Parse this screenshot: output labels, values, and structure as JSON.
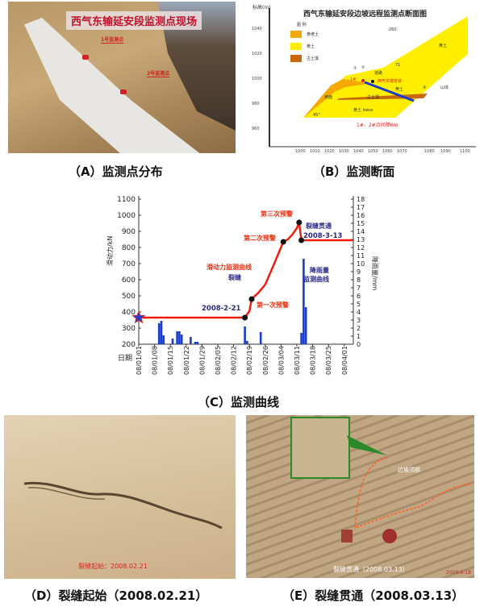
{
  "panel_a": {
    "photo_title": "西气东输延安段监测点现场",
    "marker_1": "1号监测点",
    "marker_2": "2号监测点",
    "caption": "（A）监测点分布"
  },
  "panel_b": {
    "title": "西气东输延安段边坡远程监测点断面图",
    "y_label": "标高(m)",
    "legend_title": "图  例",
    "legend": [
      {
        "label": "黄坡土",
        "color": "#f5a800"
      },
      {
        "label": "黄土",
        "color": "#ffee00"
      },
      {
        "label": "古土壤",
        "color": "#c8680a"
      }
    ],
    "y_ticks": [
      "1040",
      "1020",
      "1000",
      "980",
      "960"
    ],
    "x_ticks": [
      "1000",
      "1010",
      "1020",
      "1030",
      "1040",
      "1050",
      "1060",
      "1070",
      "1080",
      "1090",
      "1100"
    ],
    "labels": {
      "angle1": "260",
      "angle2": "71",
      "angle3": "45°",
      "road": "道路",
      "pipe": "西气东输管道",
      "point1": "1#",
      "loess": "黄土",
      "loess2": "黄土 loess",
      "paleosol": "古土壤",
      "slope": "坡面",
      "mountain": "山体",
      "c1": "①",
      "c2": "②",
      "c3": "③",
      "spacing": "1#、2#点间隔6m"
    },
    "caption": "（B）监测断面"
  },
  "chart_data": {
    "type": "line",
    "x_label": "日期",
    "y_label_left": "滑动力/kN",
    "y_label_right": "降雨量/mm",
    "ylim_left": [
      200,
      1100
    ],
    "ylim_right": [
      0,
      18
    ],
    "y_ticks_left": [
      "200",
      "300",
      "400",
      "500",
      "600",
      "700",
      "800",
      "900",
      "1000",
      "1100"
    ],
    "y_ticks_right": [
      "0",
      "1",
      "2",
      "3",
      "4",
      "5",
      "6",
      "7",
      "8",
      "9",
      "10",
      "11",
      "12",
      "13",
      "14",
      "15",
      "16",
      "17",
      "18"
    ],
    "x_ticks": [
      "08/01/01",
      "08/01/08",
      "08/01/15",
      "08/01/22",
      "08/01/29",
      "08/02/05",
      "08/02/12",
      "08/02/19",
      "08/02/26",
      "08/03/04",
      "08/03/11",
      "08/03/18",
      "08/03/25",
      "08/04/01"
    ],
    "x_range": [
      "2008-01-01",
      "2008-04-05"
    ],
    "series": [
      {
        "name": "滑动力监测曲线",
        "kind": "line",
        "axis": "left",
        "color": "#ee1c0c",
        "x": [
          "2008-01-01",
          "2008-02-17",
          "2008-02-18",
          "2008-02-19",
          "2008-02-20",
          "2008-02-23",
          "2008-02-26",
          "2008-03-01",
          "2008-03-05",
          "2008-03-07",
          "2008-03-09",
          "2008-03-11",
          "2008-03-12",
          "2008-03-13",
          "2008-04-05"
        ],
        "y": [
          365,
          365,
          385,
          405,
          480,
          520,
          570,
          700,
          835,
          850,
          880,
          920,
          955,
          845,
          845
        ]
      },
      {
        "name": "降雨量监测曲线",
        "kind": "bar",
        "axis": "right",
        "color": "#1a3ccc",
        "x": [
          "2008-01-10",
          "2008-01-11",
          "2008-01-12",
          "2008-01-16",
          "2008-01-18",
          "2008-01-19",
          "2008-01-20",
          "2008-01-24",
          "2008-01-26",
          "2008-01-27",
          "2008-02-17",
          "2008-02-18",
          "2008-02-24",
          "2008-03-13",
          "2008-03-14",
          "2008-03-15"
        ],
        "y": [
          2.6,
          2.9,
          1.1,
          0.7,
          1.6,
          1.6,
          1.2,
          0.9,
          0.3,
          0.3,
          2.2,
          0.4,
          1.5,
          1.4,
          10.6,
          4.6
        ]
      }
    ],
    "markers": [
      {
        "kind": "star",
        "x": "2008-01-01",
        "y": 365
      },
      {
        "kind": "dot",
        "x": "2008-02-17",
        "y": 365
      },
      {
        "kind": "dot",
        "x": "2008-02-20",
        "y": 480
      },
      {
        "kind": "dot",
        "x": "2008-03-05",
        "y": 835
      },
      {
        "kind": "dot",
        "x": "2008-03-12",
        "y": 955
      },
      {
        "kind": "dot",
        "x": "2008-03-13",
        "y": 845
      }
    ],
    "annotations": {
      "crack": "裂缝",
      "crack_date": "2008-2-21",
      "warn1": "第一次预警",
      "warn2": "第二次预警",
      "warn3": "第三次预警",
      "through": "裂缝贯通",
      "through_date": "2008-3-13",
      "force_curve": "滑动力监测曲线",
      "rain_curve_1": "降雨量",
      "rain_curve_2": "监测曲线"
    },
    "caption": "（C）监测曲线"
  },
  "panel_d": {
    "stamp": "裂缝起始：2008.02.21",
    "caption": "（D）裂缝起始（2008.02.21）"
  },
  "panel_e": {
    "stamp": "裂缝贯通（2008.03.13）",
    "label": "边坡顶部",
    "date_stamp": "2008-4-18",
    "caption": "（E）裂缝贯通（2008.03.13）"
  }
}
